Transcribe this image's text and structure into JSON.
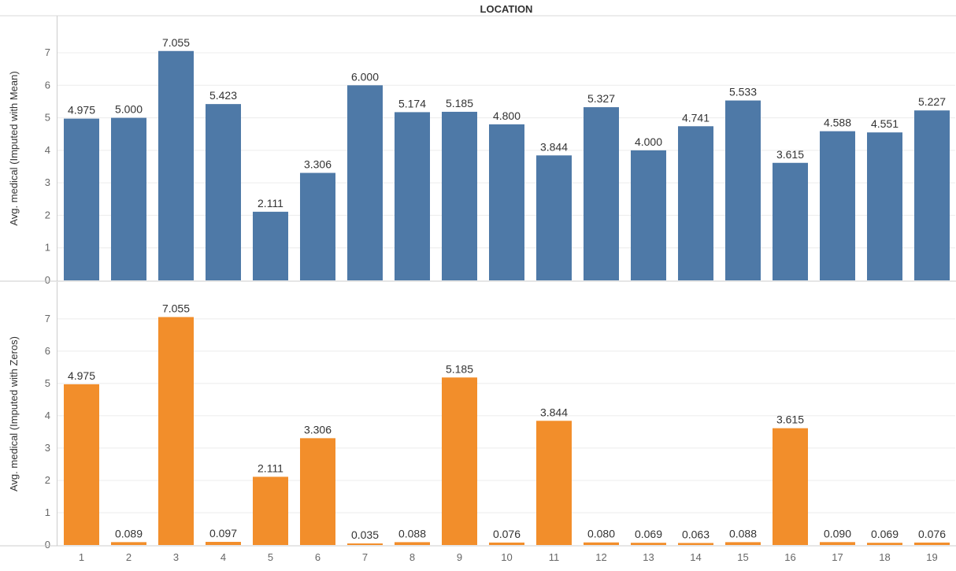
{
  "chart_data": {
    "type": "bar",
    "title": "LOCATION",
    "categories": [
      "1",
      "2",
      "3",
      "4",
      "5",
      "6",
      "7",
      "8",
      "9",
      "10",
      "11",
      "12",
      "13",
      "14",
      "15",
      "16",
      "17",
      "18",
      "19"
    ],
    "ylim": [
      0,
      7.8
    ],
    "yticks": [
      0,
      1,
      2,
      3,
      4,
      5,
      6,
      7
    ],
    "grid": true,
    "panels": [
      {
        "ylabel": "Avg. medical (Imputed with Mean)",
        "color": "#4e79a7",
        "values": [
          4.975,
          5.0,
          7.055,
          5.423,
          2.111,
          3.306,
          6.0,
          5.174,
          5.185,
          4.8,
          3.844,
          5.327,
          4.0,
          4.741,
          5.533,
          3.615,
          4.588,
          4.551,
          5.227
        ],
        "labels": [
          "4.975",
          "5.000",
          "7.055",
          "5.423",
          "2.111",
          "3.306",
          "6.000",
          "5.174",
          "5.185",
          "4.800",
          "3.844",
          "5.327",
          "4.000",
          "4.741",
          "5.533",
          "3.615",
          "4.588",
          "4.551",
          "5.227"
        ]
      },
      {
        "ylabel": "Avg. medical (Imputed with Zeros)",
        "color": "#f28e2b",
        "values": [
          4.975,
          0.089,
          7.055,
          0.097,
          2.111,
          3.306,
          0.035,
          0.088,
          5.185,
          0.076,
          3.844,
          0.08,
          0.069,
          0.063,
          0.088,
          3.615,
          0.09,
          0.069,
          0.076
        ],
        "labels": [
          "4.975",
          "0.089",
          "7.055",
          "0.097",
          "2.111",
          "3.306",
          "0.035",
          "0.088",
          "5.185",
          "0.076",
          "3.844",
          "0.080",
          "0.069",
          "0.063",
          "0.088",
          "3.615",
          "0.090",
          "0.069",
          "0.076"
        ]
      }
    ]
  }
}
